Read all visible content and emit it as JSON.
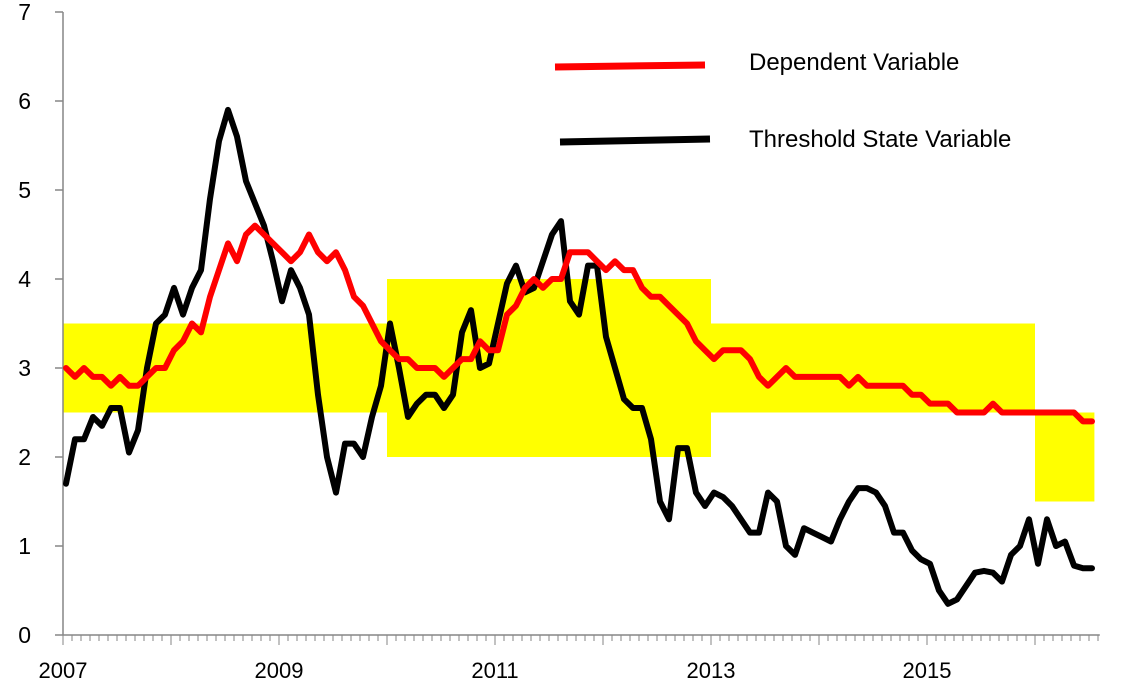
{
  "chart_data": {
    "type": "line",
    "title": "",
    "xlabel": "",
    "ylabel": "",
    "x_start": "2007-01",
    "x_frequency": "monthly",
    "xlim": [
      2007,
      2016.6
    ],
    "ylim": [
      0,
      7
    ],
    "yticks": [
      0,
      1,
      2,
      3,
      4,
      5,
      6,
      7
    ],
    "xticks": [
      2007,
      2009,
      2011,
      2013,
      2015
    ],
    "grid": false,
    "legend_placement": "top-right",
    "bands": [
      {
        "x_from": 2007,
        "x_to": 2010,
        "y_from": 2.5,
        "y_to": 3.5,
        "color": "#FFFF00"
      },
      {
        "x_from": 2010,
        "x_to": 2013,
        "y_from": 2.0,
        "y_to": 4.0,
        "color": "#FFFF00"
      },
      {
        "x_from": 2013,
        "x_to": 2016,
        "y_from": 2.5,
        "y_to": 3.5,
        "color": "#FFFF00"
      },
      {
        "x_from": 2016,
        "x_to": 2016.55,
        "y_from": 1.5,
        "y_to": 2.5,
        "color": "#FFFF00"
      }
    ],
    "series": [
      {
        "name": "Dependent Variable",
        "color": "#FF0000",
        "values": [
          3.0,
          2.9,
          3.0,
          2.9,
          2.9,
          2.8,
          2.9,
          2.8,
          2.8,
          2.9,
          3.0,
          3.0,
          3.2,
          3.3,
          3.5,
          3.4,
          3.8,
          4.1,
          4.4,
          4.2,
          4.5,
          4.6,
          4.5,
          4.4,
          4.3,
          4.2,
          4.3,
          4.5,
          4.3,
          4.2,
          4.3,
          4.1,
          3.8,
          3.7,
          3.5,
          3.3,
          3.2,
          3.1,
          3.1,
          3.0,
          3.0,
          3.0,
          2.9,
          3.0,
          3.1,
          3.1,
          3.3,
          3.2,
          3.2,
          3.6,
          3.7,
          3.9,
          4.0,
          3.9,
          4.0,
          4.0,
          4.3,
          4.3,
          4.3,
          4.2,
          4.1,
          4.2,
          4.1,
          4.1,
          3.9,
          3.8,
          3.8,
          3.7,
          3.6,
          3.5,
          3.3,
          3.2,
          3.1,
          3.2,
          3.2,
          3.2,
          3.1,
          2.9,
          2.8,
          2.9,
          3.0,
          2.9,
          2.9,
          2.9,
          2.9,
          2.9,
          2.9,
          2.8,
          2.9,
          2.8,
          2.8,
          2.8,
          2.8,
          2.8,
          2.7,
          2.7,
          2.6,
          2.6,
          2.6,
          2.5,
          2.5,
          2.5,
          2.5,
          2.6,
          2.5,
          2.5,
          2.5,
          2.5,
          2.5,
          2.5,
          2.5,
          2.5,
          2.5,
          2.4,
          2.4
        ]
      },
      {
        "name": "Threshold State Variable",
        "color": "#000000",
        "values": [
          1.7,
          2.2,
          2.2,
          2.45,
          2.35,
          2.55,
          2.55,
          2.05,
          2.3,
          3.0,
          3.5,
          3.6,
          3.9,
          3.6,
          3.9,
          4.1,
          4.9,
          5.55,
          5.9,
          5.6,
          5.1,
          4.85,
          4.6,
          4.2,
          3.75,
          4.1,
          3.9,
          3.6,
          2.7,
          2.0,
          1.6,
          2.15,
          2.15,
          2.0,
          2.45,
          2.8,
          3.5,
          3.0,
          2.45,
          2.6,
          2.7,
          2.7,
          2.55,
          2.7,
          3.4,
          3.65,
          3.0,
          3.05,
          3.5,
          3.95,
          4.15,
          3.85,
          3.9,
          4.2,
          4.5,
          4.65,
          3.75,
          3.6,
          4.15,
          4.15,
          3.35,
          3.0,
          2.65,
          2.55,
          2.55,
          2.2,
          1.5,
          1.3,
          2.1,
          2.1,
          1.6,
          1.45,
          1.6,
          1.55,
          1.45,
          1.3,
          1.15,
          1.15,
          1.6,
          1.5,
          1.0,
          0.9,
          1.2,
          1.15,
          1.1,
          1.05,
          1.3,
          1.5,
          1.65,
          1.65,
          1.6,
          1.45,
          1.15,
          1.15,
          0.95,
          0.85,
          0.8,
          0.5,
          0.35,
          0.4,
          0.55,
          0.7,
          0.72,
          0.7,
          0.6,
          0.9,
          1.0,
          1.3,
          0.8,
          1.3,
          1.0,
          1.05,
          0.78,
          0.75,
          0.75
        ]
      }
    ]
  }
}
